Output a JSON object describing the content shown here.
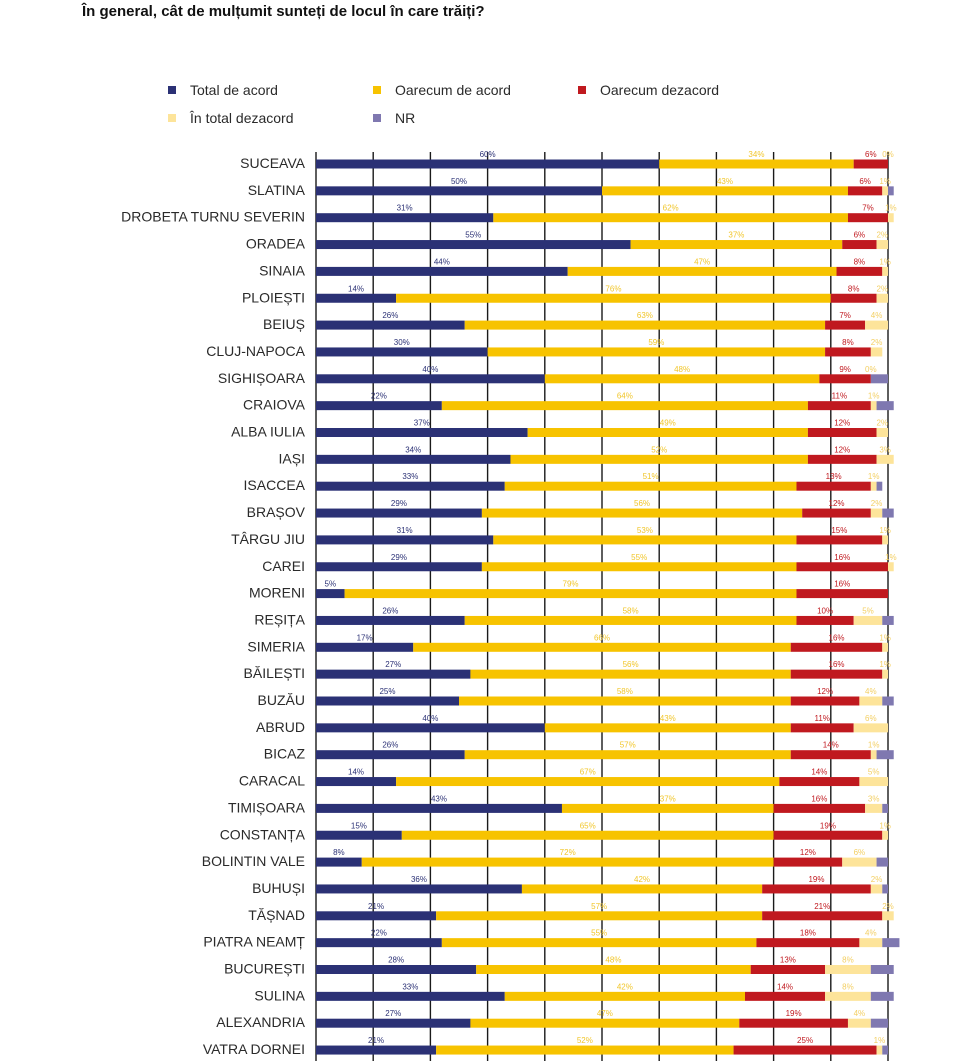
{
  "question": "În general, cât de mulțumit sunteți de locul în care trăiți?",
  "colors": {
    "total_acord": "#2b3175",
    "oarecum_acord": "#f7c300",
    "oarecum_dezacord": "#c0191f",
    "total_dezacord": "#fde49a",
    "nr": "#7f78b0",
    "grid": "#1a1a1a"
  },
  "legend": [
    {
      "label": "Total de acord",
      "color": "#2b3175"
    },
    {
      "label": "Oarecum de acord",
      "color": "#f7c300"
    },
    {
      "label": "Oarecum dezacord",
      "color": "#c0191f"
    },
    {
      "label": "În total dezacord",
      "color": "#fde49a"
    },
    {
      "label": "NR",
      "color": "#7f78b0"
    }
  ],
  "chart_data": {
    "type": "bar",
    "orientation": "horizontal",
    "stacked": true,
    "title": "În general, cât de mulțumit sunteți de locul în care trăiți?",
    "xlim": [
      0,
      100
    ],
    "grid": true,
    "legend_position": "top",
    "categories": [
      "SUCEAVA",
      "SLATINA",
      "DROBETA TURNU SEVERIN",
      "ORADEA",
      "SINAIA",
      "PLOIEȘTI",
      "BEIUȘ",
      "CLUJ-NAPOCA",
      "SIGHIȘOARA",
      "CRAIOVA",
      "ALBA IULIA",
      "IAȘI",
      "ISACCEA",
      "BRAȘOV",
      "TÂRGU JIU",
      "CAREI",
      "MORENI",
      "REȘIȚA",
      "SIMERIA",
      "BĂILEȘTI",
      "BUZĂU",
      "ABRUD",
      "BICAZ",
      "CARACAL",
      "TIMIȘOARA",
      "CONSTANȚA",
      "BOLINTIN VALE",
      "BUHUȘI",
      "TĂȘNAD",
      "PIATRA NEAMȚ",
      "BUCUREȘTI",
      "SULINA",
      "ALEXANDRIA",
      "VATRA DORNEI"
    ],
    "series": [
      {
        "name": "Total de acord",
        "values": [
          60,
          50,
          31,
          55,
          44,
          14,
          26,
          30,
          40,
          22,
          37,
          34,
          33,
          29,
          31,
          29,
          5,
          26,
          17,
          27,
          25,
          40,
          26,
          14,
          43,
          15,
          8,
          36,
          21,
          22,
          28,
          33,
          27,
          21
        ]
      },
      {
        "name": "Oarecum de acord",
        "values": [
          34,
          43,
          62,
          37,
          47,
          76,
          63,
          59,
          48,
          64,
          49,
          52,
          51,
          56,
          53,
          55,
          79,
          58,
          66,
          56,
          58,
          43,
          57,
          67,
          37,
          65,
          72,
          42,
          57,
          55,
          48,
          42,
          47,
          52
        ]
      },
      {
        "name": "Oarecum dezacord",
        "values": [
          6,
          6,
          7,
          6,
          8,
          8,
          7,
          8,
          9,
          11,
          12,
          12,
          13,
          12,
          15,
          16,
          16,
          10,
          16,
          16,
          12,
          11,
          14,
          14,
          16,
          19,
          12,
          19,
          21,
          18,
          13,
          14,
          19,
          25
        ]
      },
      {
        "name": "În total dezacord",
        "values": [
          0,
          1,
          1,
          2,
          1,
          2,
          4,
          2,
          0,
          1,
          2,
          3,
          1,
          2,
          1,
          1,
          0,
          5,
          1,
          1,
          4,
          6,
          1,
          5,
          3,
          1,
          6,
          2,
          2,
          4,
          8,
          8,
          4,
          1
        ]
      },
      {
        "name": "NR",
        "values": [
          0,
          1,
          0,
          0,
          0,
          0,
          0,
          0,
          3,
          3,
          0,
          0,
          1,
          2,
          0,
          0,
          0,
          2,
          0,
          0,
          2,
          0,
          3,
          0,
          1,
          0,
          2,
          1,
          0,
          3,
          4,
          4,
          3,
          1
        ]
      }
    ],
    "data_labels": {
      "Total de acord": [
        "60%",
        "50%",
        "31%",
        "55%",
        "44%",
        "14%",
        "26%",
        "30%",
        "40%",
        "22%",
        "37%",
        "34%",
        "33%",
        "29%",
        "31%",
        "29%",
        "5%",
        "26%",
        "17%",
        "27%",
        "25%",
        "40%",
        "26%",
        "14%",
        "43%",
        "15%",
        "8%",
        "36%",
        "21%",
        "22%",
        "28%",
        "33%",
        "27%",
        "21%"
      ],
      "Oarecum de acord": [
        "34%",
        "43%",
        "62%",
        "37%",
        "47%",
        "76%",
        "63%",
        "59%",
        "48%",
        "64%",
        "49%",
        "52%",
        "51%",
        "56%",
        "53%",
        "55%",
        "79%",
        "58%",
        "66%",
        "56%",
        "58%",
        "43%",
        "57%",
        "67%",
        "37%",
        "65%",
        "72%",
        "42%",
        "57%",
        "55%",
        "48%",
        "42%",
        "47%",
        "52%"
      ],
      "Oarecum dezacord": [
        "6%",
        "6%",
        "7%",
        "6%",
        "8%",
        "8%",
        "7%",
        "8%",
        "9%",
        "11%",
        "12%",
        "12%",
        "13%",
        "12%",
        "15%",
        "16%",
        "16%",
        "10%",
        "16%",
        "16%",
        "12%",
        "11%",
        "14%",
        "14%",
        "16%",
        "19%",
        "12%",
        "19%",
        "21%",
        "18%",
        "13%",
        "14%",
        "19%",
        "25%"
      ],
      "În total dezacord": [
        "0%",
        "1%",
        "1%",
        "2%",
        "1%",
        "2%",
        "4%",
        "2%",
        "0%",
        "1%",
        "2%",
        "3%",
        "1%",
        "2%",
        "1%",
        "1%",
        "",
        "5%",
        "1%",
        "1%",
        "4%",
        "6%",
        "1%",
        "5%",
        "3%",
        "1%",
        "6%",
        "2%",
        "2%",
        "4%",
        "8%",
        "8%",
        "4%",
        "1%"
      ]
    }
  }
}
